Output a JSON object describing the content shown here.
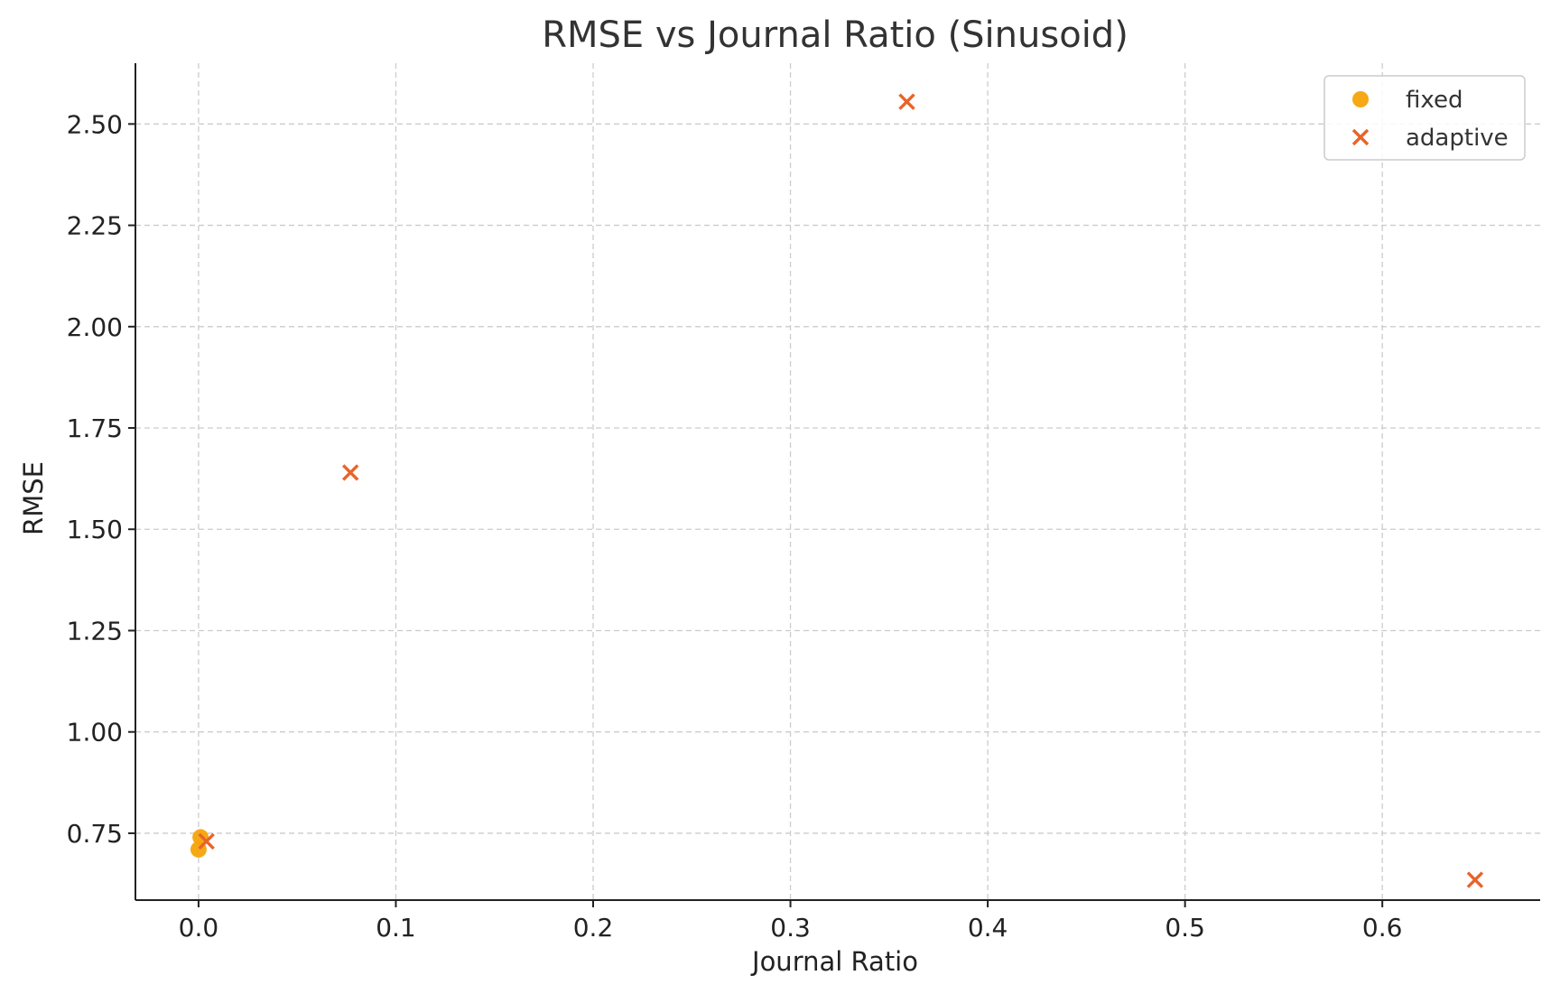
{
  "chart_data": {
    "type": "scatter",
    "title": "RMSE vs Journal Ratio (Sinusoid)",
    "xlabel": "Journal Ratio",
    "ylabel": "RMSE",
    "xlim": [
      -0.032,
      0.68
    ],
    "ylim": [
      0.585,
      2.65
    ],
    "xticks": [
      0.0,
      0.1,
      0.2,
      0.3,
      0.4,
      0.5,
      0.6
    ],
    "xtick_labels": [
      "0.0",
      "0.1",
      "0.2",
      "0.3",
      "0.4",
      "0.5",
      "0.6"
    ],
    "yticks": [
      0.75,
      1.0,
      1.25,
      1.5,
      1.75,
      2.0,
      2.25,
      2.5
    ],
    "ytick_labels": [
      "0.75",
      "1.00",
      "1.25",
      "1.50",
      "1.75",
      "2.00",
      "2.25",
      "2.50"
    ],
    "grid": true,
    "legend_position": "top-right",
    "series": [
      {
        "name": "fixed",
        "marker": "circle",
        "color": "#f5a30a",
        "points": [
          {
            "x": 0.0,
            "y": 0.71
          },
          {
            "x": 0.001,
            "y": 0.74
          }
        ]
      },
      {
        "name": "adaptive",
        "marker": "x",
        "color": "#e8642a",
        "points": [
          {
            "x": 0.004,
            "y": 0.73
          },
          {
            "x": 0.077,
            "y": 1.64
          },
          {
            "x": 0.359,
            "y": 2.555
          },
          {
            "x": 0.647,
            "y": 0.635
          }
        ]
      }
    ]
  }
}
